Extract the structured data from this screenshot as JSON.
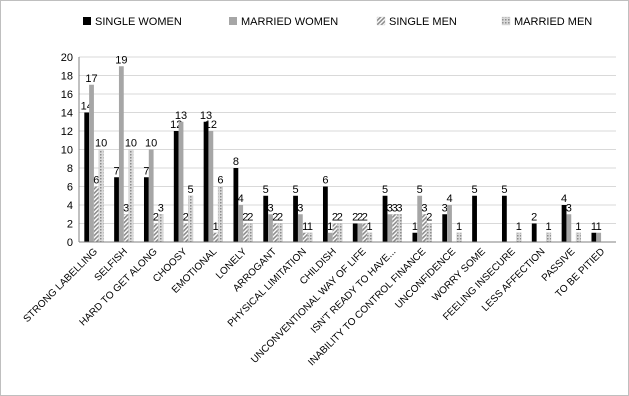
{
  "chart_data": {
    "type": "bar",
    "title": "",
    "xlabel": "",
    "ylabel": "",
    "ylim": [
      0,
      20
    ],
    "yticks": [
      0,
      2,
      4,
      6,
      8,
      10,
      12,
      14,
      16,
      18,
      20
    ],
    "grid": "horizontal",
    "legend_position": "top",
    "categories": [
      "STRONG LABELLING",
      "SELFISH",
      "HARD TO GET ALONG",
      "CHOOSY",
      "EMOTIONAL",
      "LONELY",
      "ARROGANT",
      "PHYSICAL LIMITATION",
      "CHILDISH",
      "UNCONVENTIONAL WAY OF LIFE",
      "ISN'T READY TO HAVE...",
      "INABILITY TO CONTROL FINANCE",
      "UNCONFIDENCE",
      "WORRY SOME",
      "FEELING INSECURE",
      "LESS AFFECTION",
      "PASSIVE",
      "TO BE PITIED"
    ],
    "series": [
      {
        "name": "SINGLE WOMEN",
        "color": "#000000",
        "pattern": "solid",
        "values": [
          14,
          7,
          7,
          12,
          13,
          8,
          5,
          5,
          6,
          2,
          5,
          1,
          3,
          5,
          5,
          2,
          4,
          1
        ]
      },
      {
        "name": "MARRIED WOMEN",
        "color": "#a6a6a6",
        "pattern": "solid",
        "values": [
          17,
          19,
          10,
          13,
          12,
          4,
          3,
          3,
          1,
          2,
          3,
          5,
          4,
          0,
          0,
          0,
          3,
          1
        ]
      },
      {
        "name": "SINGLE MEN",
        "color": "#a6a6a6",
        "pattern": "diagonal",
        "values": [
          6,
          3,
          2,
          2,
          1,
          2,
          2,
          1,
          2,
          2,
          3,
          3,
          0,
          0,
          0,
          0,
          0,
          0
        ]
      },
      {
        "name": "MARRIED MEN",
        "color": "#bfbfbf",
        "pattern": "dotted",
        "values": [
          10,
          10,
          3,
          5,
          6,
          2,
          2,
          1,
          2,
          1,
          3,
          2,
          1,
          0,
          1,
          1,
          1,
          0
        ]
      }
    ],
    "value_labels": [
      [
        "14",
        "7",
        "7",
        "12",
        "13",
        "8",
        "5",
        "5",
        "6",
        "2",
        "5",
        "1",
        "3",
        "5",
        "5",
        "2",
        "4",
        "1"
      ],
      [
        "17",
        "19",
        "10",
        "13",
        "12",
        "4",
        "3",
        "3",
        "1",
        "2",
        "3",
        "5",
        "4",
        "",
        "",
        "",
        "3",
        "1"
      ],
      [
        "6",
        "3",
        "2",
        "2",
        "1",
        "2",
        "2",
        "1",
        "2",
        "2",
        "3",
        "3",
        "",
        "",
        "",
        "",
        "",
        ""
      ],
      [
        "10",
        "10",
        "3",
        "5",
        "6",
        "2",
        "2",
        "1",
        "2",
        "1",
        "3",
        "2",
        "1",
        "",
        "1",
        "1",
        "1",
        ""
      ]
    ]
  }
}
